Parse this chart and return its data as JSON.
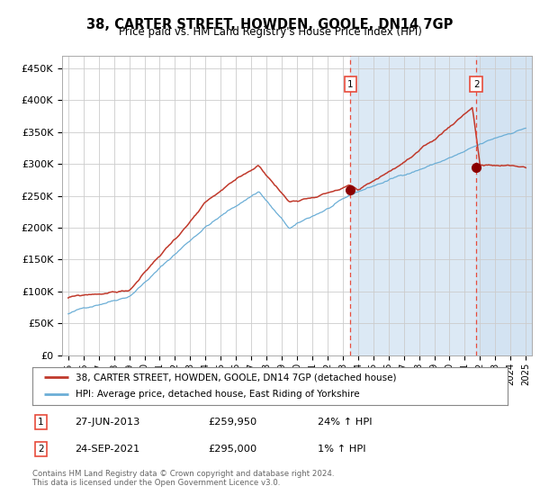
{
  "title": "38, CARTER STREET, HOWDEN, GOOLE, DN14 7GP",
  "subtitle": "Price paid vs. HM Land Registry's House Price Index (HPI)",
  "legend_line1": "38, CARTER STREET, HOWDEN, GOOLE, DN14 7GP (detached house)",
  "legend_line2": "HPI: Average price, detached house, East Riding of Yorkshire",
  "annotation1_date": "27-JUN-2013",
  "annotation1_price": "£259,950",
  "annotation1_hpi": "24% ↑ HPI",
  "annotation2_date": "24-SEP-2021",
  "annotation2_price": "£295,000",
  "annotation2_hpi": "1% ↑ HPI",
  "copyright": "Contains HM Land Registry data © Crown copyright and database right 2024.\nThis data is licensed under the Open Government Licence v3.0.",
  "red_color": "#c0392b",
  "blue_color": "#6baed6",
  "shade_color": "#dce9f5",
  "grid_color": "#cccccc",
  "dashed_color": "#e74c3c",
  "ylim": [
    0,
    470000
  ],
  "yticks": [
    0,
    50000,
    100000,
    150000,
    200000,
    250000,
    300000,
    350000,
    400000,
    450000
  ],
  "event1_x": 2013.5,
  "event2_x": 2021.75,
  "event1_y": 259950,
  "event2_y": 295000,
  "xmin": 1994.6,
  "xmax": 2025.4
}
